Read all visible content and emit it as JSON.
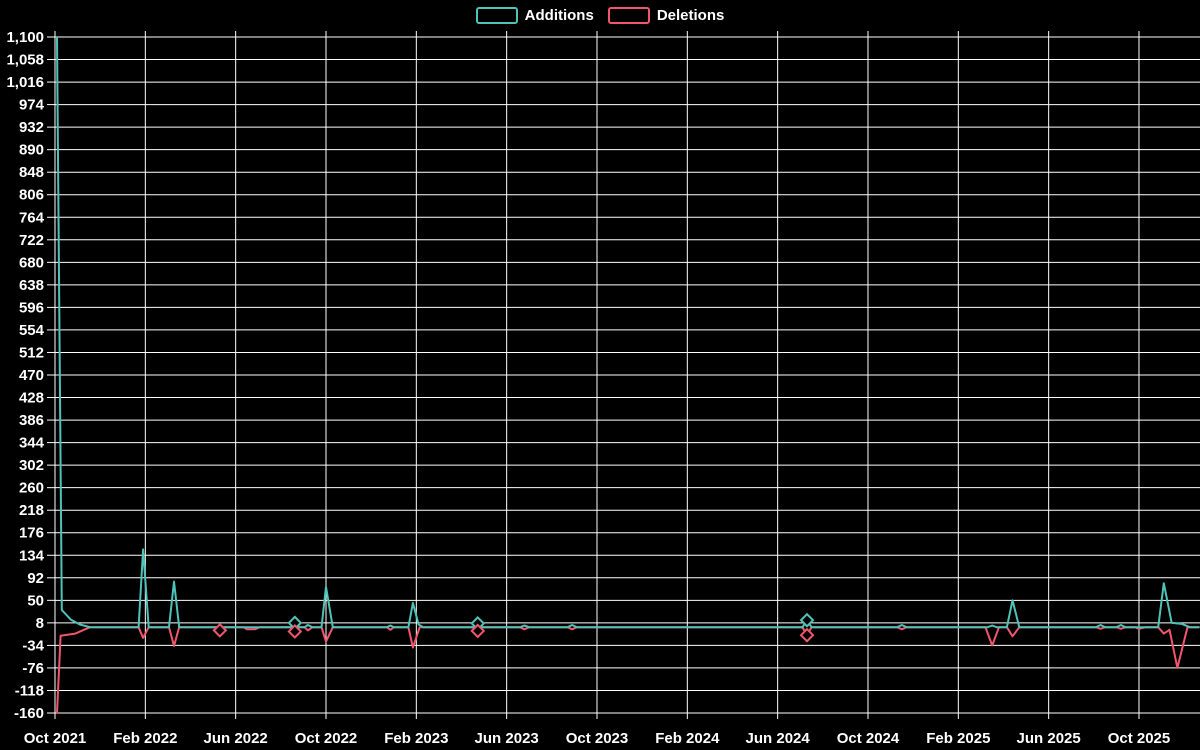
{
  "page": {
    "background_color": "#000000",
    "grid_color": "#ffffff",
    "text_color": "#ffffff"
  },
  "legend": {
    "items": [
      {
        "label": "Additions",
        "color": "#4fc3b8"
      },
      {
        "label": "Deletions",
        "color": "#f2566f"
      }
    ]
  },
  "chart_data": {
    "type": "line",
    "title": "",
    "xlabel": "",
    "ylabel": "",
    "grid": true,
    "legend_position": "top-center",
    "x_axis": {
      "unit": "months since Oct 2021",
      "tick_labels": [
        "Oct 2021",
        "Feb 2022",
        "Jun 2022",
        "Oct 2022",
        "Feb 2023",
        "Jun 2023",
        "Oct 2023",
        "Feb 2024",
        "Jun 2024",
        "Oct 2024",
        "Feb 2025",
        "Jun 2025",
        "Oct 2025"
      ],
      "tick_month_positions": [
        0,
        4,
        8,
        12,
        16,
        20,
        24,
        28,
        32,
        36,
        40,
        44,
        48
      ],
      "range_months": [
        0,
        50.7
      ]
    },
    "y_axis": {
      "min": -160,
      "max": 1100,
      "step": 42,
      "tick_labels_top_to_bottom": [
        "1,100",
        "1,058",
        "1,016",
        "974",
        "932",
        "890",
        "848",
        "806",
        "764",
        "722",
        "680",
        "638",
        "596",
        "554",
        "512",
        "470",
        "428",
        "386",
        "344",
        "302",
        "260",
        "218",
        "176",
        "134",
        "92",
        "50",
        "8",
        "-34",
        "-76",
        "-118",
        "-160"
      ]
    },
    "series": [
      {
        "name": "Additions",
        "color": "#4fc3b8",
        "points": [
          [
            0.09,
            1100
          ],
          [
            0.3,
            32
          ],
          [
            0.7,
            14
          ],
          [
            1.1,
            5
          ],
          [
            1.55,
            0
          ],
          [
            3.7,
            0
          ],
          [
            3.9,
            145
          ],
          [
            4.15,
            0
          ],
          [
            5.05,
            0
          ],
          [
            5.27,
            85
          ],
          [
            5.5,
            0
          ],
          [
            10.45,
            0
          ],
          [
            10.62,
            8
          ],
          [
            10.8,
            0
          ],
          [
            11.05,
            0
          ],
          [
            11.2,
            4
          ],
          [
            11.4,
            0
          ],
          [
            11.8,
            0
          ],
          [
            12.0,
            75
          ],
          [
            12.3,
            0
          ],
          [
            14.7,
            0
          ],
          [
            14.85,
            3
          ],
          [
            15.0,
            0
          ],
          [
            15.65,
            0
          ],
          [
            15.85,
            45
          ],
          [
            16.1,
            5
          ],
          [
            16.3,
            0
          ],
          [
            18.55,
            0
          ],
          [
            18.72,
            7
          ],
          [
            18.9,
            0
          ],
          [
            20.6,
            0
          ],
          [
            20.78,
            3
          ],
          [
            21.0,
            0
          ],
          [
            22.7,
            0
          ],
          [
            22.9,
            4
          ],
          [
            23.1,
            0
          ],
          [
            33.1,
            0
          ],
          [
            33.3,
            13
          ],
          [
            33.5,
            0
          ],
          [
            37.3,
            0
          ],
          [
            37.5,
            4
          ],
          [
            37.7,
            0
          ],
          [
            41.3,
            0
          ],
          [
            41.5,
            3
          ],
          [
            41.7,
            0
          ],
          [
            42.15,
            0
          ],
          [
            42.4,
            50
          ],
          [
            42.7,
            0
          ],
          [
            46.1,
            0
          ],
          [
            46.3,
            4
          ],
          [
            46.5,
            0
          ],
          [
            47.0,
            0
          ],
          [
            47.2,
            4
          ],
          [
            47.4,
            0
          ],
          [
            48.85,
            0
          ],
          [
            49.1,
            82
          ],
          [
            49.45,
            8
          ],
          [
            49.9,
            6
          ],
          [
            50.25,
            0
          ],
          [
            50.65,
            0
          ]
        ]
      },
      {
        "name": "Deletions",
        "color": "#f2566f",
        "points": [
          [
            0.09,
            -160
          ],
          [
            0.25,
            -16
          ],
          [
            0.9,
            -12
          ],
          [
            1.55,
            0
          ],
          [
            3.7,
            0
          ],
          [
            3.9,
            -20
          ],
          [
            4.15,
            0
          ],
          [
            5.05,
            0
          ],
          [
            5.27,
            -35
          ],
          [
            5.5,
            0
          ],
          [
            7.15,
            0
          ],
          [
            7.3,
            -6
          ],
          [
            7.5,
            0
          ],
          [
            8.35,
            0
          ],
          [
            8.5,
            -4
          ],
          [
            8.85,
            -4
          ],
          [
            9.05,
            0
          ],
          [
            10.45,
            0
          ],
          [
            10.62,
            -8
          ],
          [
            10.8,
            0
          ],
          [
            11.05,
            0
          ],
          [
            11.2,
            -6
          ],
          [
            11.4,
            0
          ],
          [
            11.8,
            0
          ],
          [
            12.0,
            -27
          ],
          [
            12.3,
            0
          ],
          [
            14.7,
            0
          ],
          [
            14.85,
            -5
          ],
          [
            15.0,
            0
          ],
          [
            15.65,
            0
          ],
          [
            15.85,
            -38
          ],
          [
            16.15,
            0
          ],
          [
            18.55,
            0
          ],
          [
            18.72,
            -7
          ],
          [
            18.9,
            0
          ],
          [
            20.6,
            0
          ],
          [
            20.78,
            -4
          ],
          [
            21.0,
            0
          ],
          [
            22.7,
            0
          ],
          [
            22.9,
            -4
          ],
          [
            23.1,
            0
          ],
          [
            33.1,
            0
          ],
          [
            33.3,
            -15
          ],
          [
            33.5,
            0
          ],
          [
            37.3,
            0
          ],
          [
            37.5,
            -4
          ],
          [
            37.7,
            0
          ],
          [
            41.2,
            0
          ],
          [
            41.5,
            -34
          ],
          [
            41.8,
            0
          ],
          [
            42.15,
            0
          ],
          [
            42.4,
            -17
          ],
          [
            42.7,
            0
          ],
          [
            46.1,
            0
          ],
          [
            46.3,
            -3
          ],
          [
            46.5,
            0
          ],
          [
            47.0,
            0
          ],
          [
            47.2,
            -3
          ],
          [
            47.4,
            0
          ],
          [
            47.85,
            0
          ],
          [
            48.0,
            -3
          ],
          [
            48.3,
            0
          ],
          [
            48.85,
            0
          ],
          [
            49.1,
            -12
          ],
          [
            49.35,
            -5
          ],
          [
            49.7,
            -76
          ],
          [
            50.15,
            0
          ],
          [
            50.65,
            0
          ]
        ]
      }
    ],
    "markers": [
      {
        "series": "Additions",
        "month": 10.62,
        "value": 8
      },
      {
        "series": "Additions",
        "month": 18.72,
        "value": 7
      },
      {
        "series": "Additions",
        "month": 33.3,
        "value": 13
      },
      {
        "series": "Deletions",
        "month": 7.3,
        "value": -6
      },
      {
        "series": "Deletions",
        "month": 10.62,
        "value": -8
      },
      {
        "series": "Deletions",
        "month": 18.72,
        "value": -7
      },
      {
        "series": "Deletions",
        "month": 33.3,
        "value": -15
      }
    ]
  }
}
